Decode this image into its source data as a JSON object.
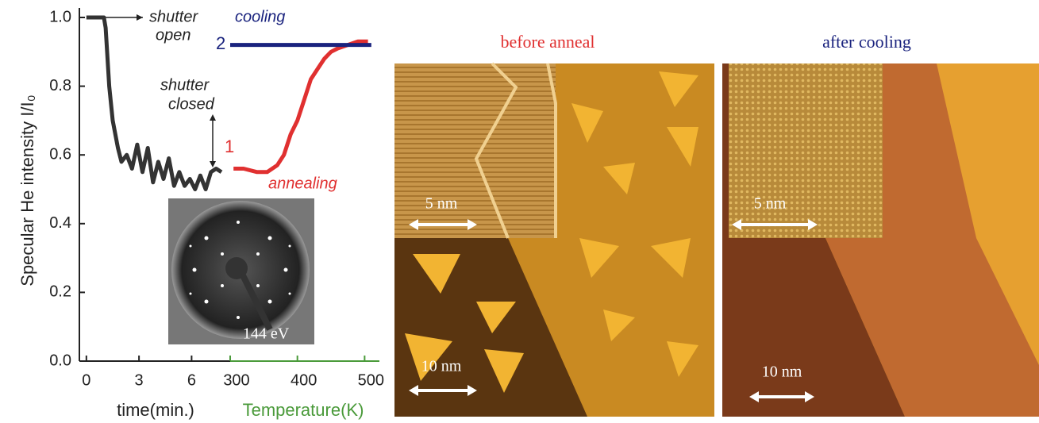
{
  "chart_data": {
    "type": "line",
    "ylabel": "Specular He intensity I/I₀",
    "xlabel": "time(min.)",
    "x2label": "Temperature(K)",
    "ylim": [
      0,
      1
    ],
    "yticks": [
      {
        "value": 0,
        "label": "0.0"
      },
      0.2,
      0.4,
      0.6,
      0.8,
      {
        "value": 1,
        "label": "1.0"
      }
    ],
    "xlim": [
      -0.4,
      8.2
    ],
    "xticks": [
      0,
      3,
      6
    ],
    "x2lim": [
      300,
      522
    ],
    "x2ticks": [
      300,
      400,
      500
    ],
    "series": [
      {
        "color": "#333333",
        "x": [
          0,
          0.5,
          1,
          1.1,
          1.3,
          1.5,
          1.8,
          2,
          2.3,
          2.6,
          2.9,
          3.2,
          3.5,
          3.8,
          4.1,
          4.4,
          4.7,
          5,
          5.3,
          5.6,
          5.9,
          6.2,
          6.5,
          6.8,
          7.1,
          7.4,
          7.7
        ],
        "values": [
          1,
          1,
          1,
          0.97,
          0.8,
          0.7,
          0.62,
          0.58,
          0.6,
          0.56,
          0.63,
          0.55,
          0.62,
          0.52,
          0.58,
          0.53,
          0.59,
          0.51,
          0.55,
          0.51,
          0.53,
          0.5,
          0.54,
          0.5,
          0.55,
          0.56,
          0.55
        ]
      },
      {
        "color": "#e03030",
        "axis": "x2",
        "x": [
          305,
          320,
          340,
          355,
          370,
          380,
          390,
          400,
          410,
          420,
          430,
          440,
          450,
          460,
          475,
          490,
          505
        ],
        "values": [
          0.56,
          0.56,
          0.55,
          0.55,
          0.57,
          0.6,
          0.66,
          0.7,
          0.76,
          0.82,
          0.85,
          0.88,
          0.9,
          0.91,
          0.92,
          0.93,
          0.93
        ]
      },
      {
        "color": "#1a237e",
        "axis": "x2",
        "x": [
          300,
          350,
          400,
          450,
          510
        ],
        "values": [
          0.92,
          0.92,
          0.92,
          0.92,
          0.92
        ]
      }
    ],
    "annotations": [
      "shutter",
      "open",
      "shutter",
      "closed",
      "1",
      "2",
      "cooling",
      "annealing",
      "144 eV"
    ]
  },
  "images": [
    {
      "title": "before anneal",
      "inset_scale": "5 nm",
      "scale": "10 nm"
    },
    {
      "title": "after cooling",
      "inset_scale": "5 nm",
      "scale": "10 nm"
    }
  ]
}
